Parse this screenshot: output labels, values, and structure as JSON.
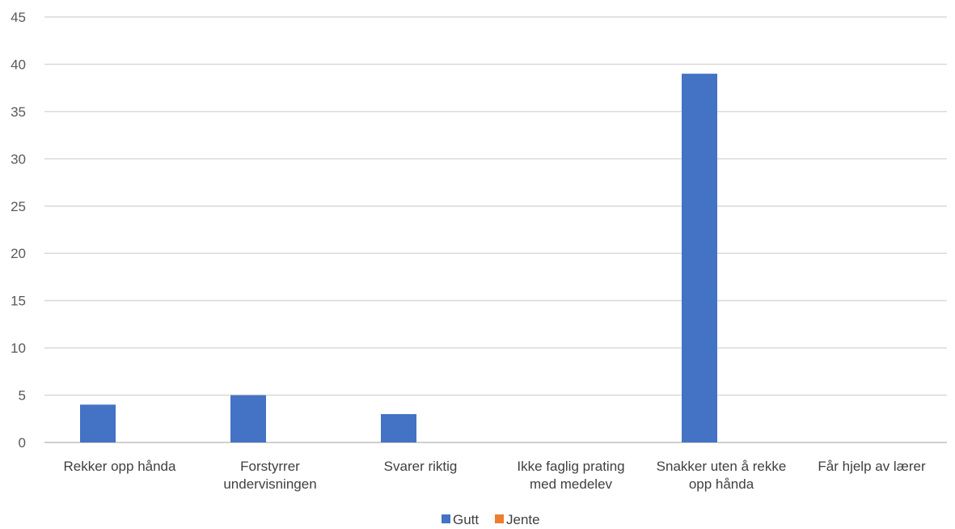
{
  "chart_data": {
    "type": "bar",
    "categories": [
      [
        "Rekker opp hånda"
      ],
      [
        "Forstyrrer",
        "undervisningen"
      ],
      [
        "Svarer riktig"
      ],
      [
        "Ikke faglig prating",
        "med medelev"
      ],
      [
        "Snakker uten å rekke",
        "opp hånda"
      ],
      [
        "Får hjelp av lærer"
      ]
    ],
    "series": [
      {
        "name": "Gutt",
        "values": [
          4,
          5,
          3,
          0,
          39,
          0
        ],
        "color": "#4472C4"
      },
      {
        "name": "Jente",
        "values": [
          0,
          0,
          0,
          0,
          0,
          0
        ],
        "color": "#ED7D31"
      }
    ],
    "title": "",
    "xlabel": "",
    "ylabel": "",
    "ylim": [
      0,
      45
    ],
    "yticks": [
      0,
      5,
      10,
      15,
      20,
      25,
      30,
      35,
      40,
      45
    ],
    "grid": true,
    "legend_position": "bottom"
  }
}
